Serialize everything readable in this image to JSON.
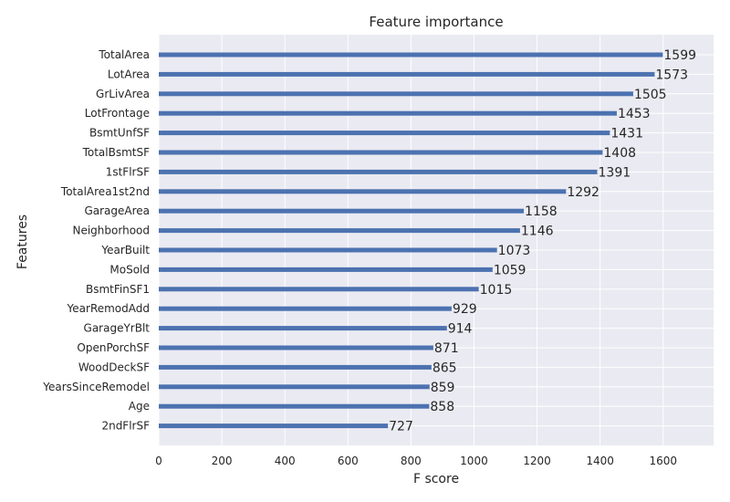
{
  "chart_data": {
    "type": "bar",
    "orientation": "horizontal",
    "title": "Feature importance",
    "xlabel": "F score",
    "ylabel": "Features",
    "xlim": [
      0,
      1760
    ],
    "xticks": [
      0,
      200,
      400,
      600,
      800,
      1000,
      1200,
      1400,
      1600
    ],
    "grid": true,
    "bar_color": "#4c72b0",
    "background_color": "#eaeaf2",
    "categories": [
      "TotalArea",
      "LotArea",
      "GrLivArea",
      "LotFrontage",
      "BsmtUnfSF",
      "TotalBsmtSF",
      "1stFlrSF",
      "TotalArea1st2nd",
      "GarageArea",
      "Neighborhood",
      "YearBuilt",
      "MoSold",
      "BsmtFinSF1",
      "YearRemodAdd",
      "GarageYrBlt",
      "OpenPorchSF",
      "WoodDeckSF",
      "YearsSinceRemodel",
      "Age",
      "2ndFlrSF"
    ],
    "values": [
      1599,
      1573,
      1505,
      1453,
      1431,
      1408,
      1391,
      1292,
      1158,
      1146,
      1073,
      1059,
      1015,
      929,
      914,
      871,
      865,
      859,
      858,
      727
    ]
  }
}
